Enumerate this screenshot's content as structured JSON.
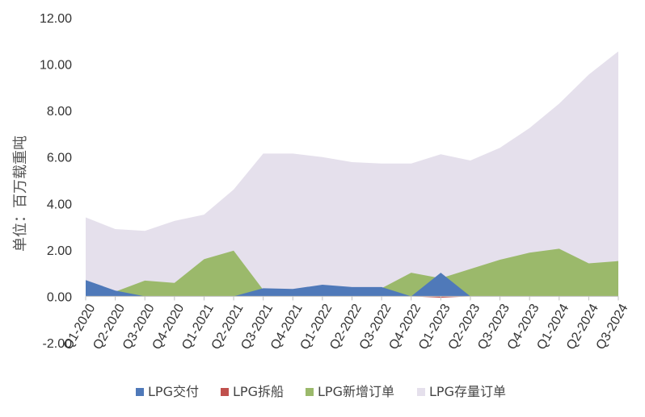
{
  "chart_data": {
    "type": "area",
    "ylabel": "单位：百万载重吨",
    "ylim": [
      -2,
      12
    ],
    "yticks": [
      "-2.00",
      "0.00",
      "2.00",
      "4.00",
      "6.00",
      "8.00",
      "10.00",
      "12.00"
    ],
    "categories": [
      "Q1-2020",
      "Q2-2020",
      "Q3-2020",
      "Q4-2020",
      "Q1-2021",
      "Q2-2021",
      "Q3-2021",
      "Q4-2021",
      "Q1-2022",
      "Q2-2022",
      "Q3-2022",
      "Q4-2022",
      "Q1-2023",
      "Q2-2023",
      "Q3-2023",
      "Q4-2023",
      "Q1-2024",
      "Q2-2024",
      "Q3-2024"
    ],
    "series": [
      {
        "name": "LPG存量订单",
        "color": "#e5e0ec",
        "values": [
          3.4,
          2.9,
          2.82,
          3.25,
          3.52,
          4.6,
          6.15,
          6.15,
          6.0,
          5.78,
          5.72,
          5.72,
          6.12,
          5.85,
          6.4,
          7.25,
          8.3,
          9.55,
          10.55
        ]
      },
      {
        "name": "LPG新增订单",
        "color": "#9bb96b",
        "values": [
          0.2,
          0.2,
          0.68,
          0.58,
          1.6,
          1.97,
          0.28,
          0.22,
          0.3,
          0.32,
          0.35,
          1.02,
          0.78,
          1.18,
          1.58,
          1.88,
          2.05,
          1.42,
          1.52
        ]
      },
      {
        "name": "LPG交付",
        "color": "#4f79b9",
        "values": [
          0.7,
          0.25,
          0.0,
          0.0,
          0.0,
          0.0,
          0.35,
          0.32,
          0.5,
          0.4,
          0.4,
          0.0,
          1.02,
          0.0,
          0.0,
          0.0,
          0.0,
          0.0,
          0.0
        ]
      },
      {
        "name": "LPG拆船",
        "color": "#c0504d",
        "values": [
          0.0,
          0.0,
          0.0,
          0.0,
          0.0,
          0.0,
          0.0,
          0.0,
          0.0,
          0.0,
          0.0,
          0.0,
          -0.06,
          0.0,
          0.0,
          0.0,
          0.0,
          0.0,
          0.0
        ]
      }
    ],
    "legend": {
      "position": "bottom",
      "order": [
        "LPG交付",
        "LPG拆船",
        "LPG新增订单",
        "LPG存量订单"
      ]
    },
    "grid": false
  }
}
